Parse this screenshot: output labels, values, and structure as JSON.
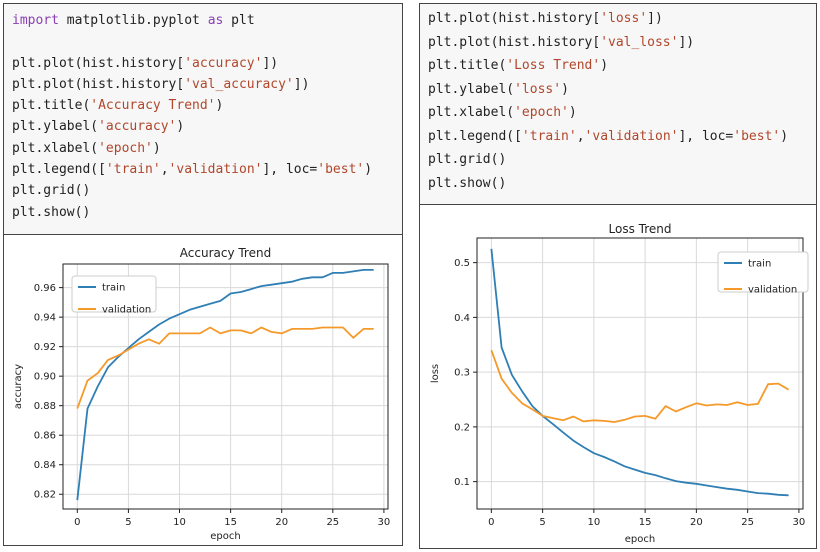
{
  "left": {
    "code": [
      [
        {
          "t": "import",
          "c": "kw"
        },
        {
          "t": " matplotlib.pyplot "
        },
        {
          "t": "as",
          "c": "kw"
        },
        {
          "t": " plt"
        }
      ],
      [],
      [
        {
          "t": "plt.plot(hist.history["
        },
        {
          "t": "'accuracy'",
          "c": "str"
        },
        {
          "t": "])"
        }
      ],
      [
        {
          "t": "plt.plot(hist.history["
        },
        {
          "t": "'val_accuracy'",
          "c": "str"
        },
        {
          "t": "])"
        }
      ],
      [
        {
          "t": "plt.title("
        },
        {
          "t": "'Accuracy Trend'",
          "c": "str"
        },
        {
          "t": ")"
        }
      ],
      [
        {
          "t": "plt.ylabel("
        },
        {
          "t": "'accuracy'",
          "c": "str"
        },
        {
          "t": ")"
        }
      ],
      [
        {
          "t": "plt.xlabel("
        },
        {
          "t": "'epoch'",
          "c": "str"
        },
        {
          "t": ")"
        }
      ],
      [
        {
          "t": "plt.legend(["
        },
        {
          "t": "'train'",
          "c": "str"
        },
        {
          "t": ","
        },
        {
          "t": "'validation'",
          "c": "str"
        },
        {
          "t": "], loc="
        },
        {
          "t": "'best'",
          "c": "str"
        },
        {
          "t": ")"
        }
      ],
      [
        {
          "t": "plt.grid()"
        }
      ],
      [
        {
          "t": "plt.show()"
        }
      ]
    ]
  },
  "right": {
    "code": [
      [
        {
          "t": "plt.plot(hist.history["
        },
        {
          "t": "'loss'",
          "c": "str"
        },
        {
          "t": "])"
        }
      ],
      [
        {
          "t": "plt.plot(hist.history["
        },
        {
          "t": "'val_loss'",
          "c": "str"
        },
        {
          "t": "])"
        }
      ],
      [
        {
          "t": "plt.title("
        },
        {
          "t": "'Loss Trend'",
          "c": "str"
        },
        {
          "t": ")"
        }
      ],
      [
        {
          "t": "plt.ylabel("
        },
        {
          "t": "'loss'",
          "c": "str"
        },
        {
          "t": ")"
        }
      ],
      [
        {
          "t": "plt.xlabel("
        },
        {
          "t": "'epoch'",
          "c": "str"
        },
        {
          "t": ")"
        }
      ],
      [
        {
          "t": "plt.legend(["
        },
        {
          "t": "'train'",
          "c": "str"
        },
        {
          "t": ","
        },
        {
          "t": "'validation'",
          "c": "str"
        },
        {
          "t": "], loc="
        },
        {
          "t": "'best'",
          "c": "str"
        },
        {
          "t": ")"
        }
      ],
      [
        {
          "t": "plt.grid()"
        }
      ],
      [
        {
          "t": "plt.show()"
        }
      ]
    ]
  },
  "colors": {
    "train": "#2f7fb5",
    "validation": "#f59a2a",
    "grid": "#d9d9d9",
    "keyword": "#8b3fb5",
    "string": "#b0472c"
  },
  "chart_data": [
    {
      "type": "line",
      "title": "Accuracy Trend",
      "xlabel": "epoch",
      "ylabel": "accuracy",
      "xlim": [
        -1.4,
        30.4
      ],
      "ylim": [
        0.81,
        0.976
      ],
      "xticks": [
        0,
        5,
        10,
        15,
        20,
        25,
        30
      ],
      "yticks": [
        0.82,
        0.84,
        0.86,
        0.88,
        0.9,
        0.92,
        0.94,
        0.96
      ],
      "ytick_labels": [
        "0.82",
        "0.84",
        "0.86",
        "0.88",
        "0.90",
        "0.92",
        "0.94",
        "0.96"
      ],
      "legend_loc": "upper-left",
      "grid": true,
      "x": [
        0,
        1,
        2,
        3,
        4,
        5,
        6,
        7,
        8,
        9,
        10,
        11,
        12,
        13,
        14,
        15,
        16,
        17,
        18,
        19,
        20,
        21,
        22,
        23,
        24,
        25,
        26,
        27,
        28,
        29
      ],
      "series": [
        {
          "name": "train",
          "values": [
            0.816,
            0.878,
            0.893,
            0.906,
            0.913,
            0.919,
            0.925,
            0.93,
            0.935,
            0.939,
            0.942,
            0.945,
            0.947,
            0.949,
            0.951,
            0.956,
            0.957,
            0.959,
            0.961,
            0.962,
            0.963,
            0.964,
            0.966,
            0.967,
            0.967,
            0.97,
            0.97,
            0.971,
            0.972,
            0.972
          ]
        },
        {
          "name": "validation",
          "values": [
            0.878,
            0.897,
            0.902,
            0.911,
            0.914,
            0.918,
            0.922,
            0.925,
            0.922,
            0.929,
            0.929,
            0.929,
            0.929,
            0.933,
            0.929,
            0.931,
            0.931,
            0.929,
            0.933,
            0.93,
            0.929,
            0.932,
            0.932,
            0.932,
            0.933,
            0.933,
            0.933,
            0.926,
            0.932,
            0.932
          ]
        }
      ]
    },
    {
      "type": "line",
      "title": "Loss Trend",
      "xlabel": "epoch",
      "ylabel": "loss",
      "xlim": [
        -1.4,
        30.4
      ],
      "ylim": [
        0.05,
        0.545
      ],
      "xticks": [
        0,
        5,
        10,
        15,
        20,
        25,
        30
      ],
      "yticks": [
        0.1,
        0.2,
        0.3,
        0.4,
        0.5
      ],
      "ytick_labels": [
        "0.1",
        "0.2",
        "0.3",
        "0.4",
        "0.5"
      ],
      "legend_loc": "upper-right",
      "grid": true,
      "x": [
        0,
        1,
        2,
        3,
        4,
        5,
        6,
        7,
        8,
        9,
        10,
        11,
        12,
        13,
        14,
        15,
        16,
        17,
        18,
        19,
        20,
        21,
        22,
        23,
        24,
        25,
        26,
        27,
        28,
        29
      ],
      "series": [
        {
          "name": "train",
          "values": [
            0.525,
            0.345,
            0.295,
            0.265,
            0.238,
            0.22,
            0.205,
            0.19,
            0.175,
            0.163,
            0.152,
            0.145,
            0.137,
            0.128,
            0.122,
            0.116,
            0.112,
            0.106,
            0.101,
            0.098,
            0.096,
            0.093,
            0.09,
            0.087,
            0.085,
            0.082,
            0.079,
            0.078,
            0.076,
            0.075
          ]
        },
        {
          "name": "validation",
          "values": [
            0.34,
            0.288,
            0.262,
            0.243,
            0.232,
            0.22,
            0.216,
            0.212,
            0.219,
            0.21,
            0.212,
            0.211,
            0.209,
            0.213,
            0.219,
            0.22,
            0.215,
            0.238,
            0.228,
            0.236,
            0.243,
            0.239,
            0.241,
            0.24,
            0.245,
            0.24,
            0.242,
            0.278,
            0.279,
            0.268
          ]
        }
      ]
    }
  ]
}
